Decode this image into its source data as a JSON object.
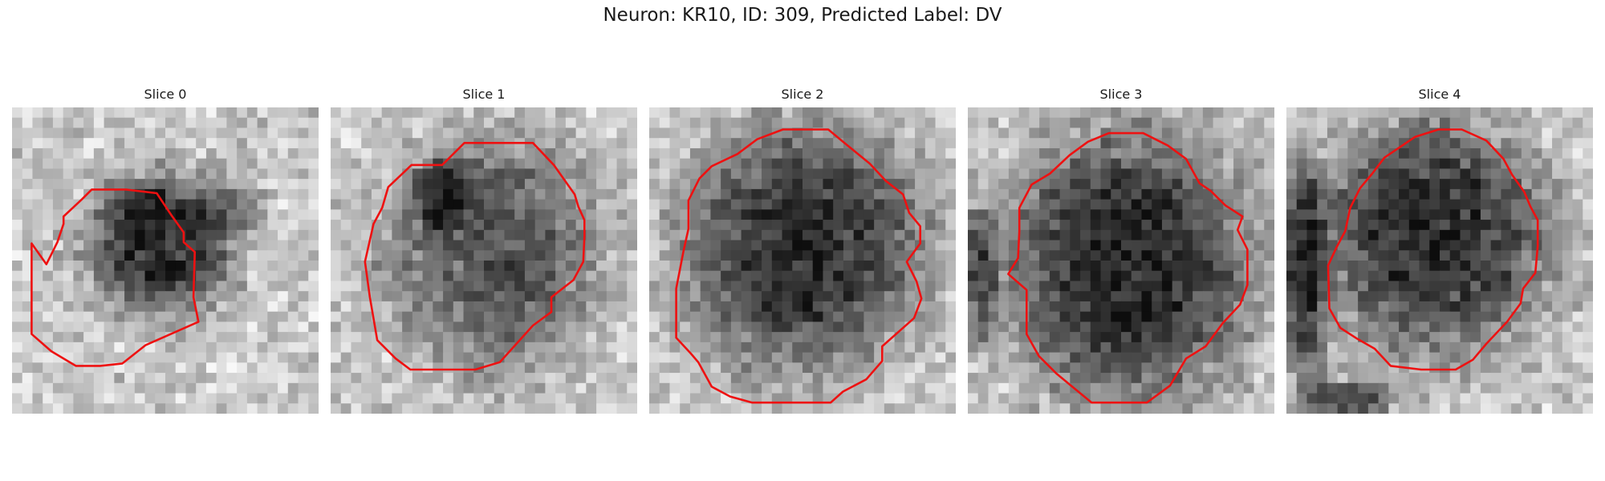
{
  "figure": {
    "title": "Neuron: KR10, ID: 309, Predicted Label: DV",
    "panels": [
      {
        "title": "Slice 0"
      },
      {
        "title": "Slice 1"
      },
      {
        "title": "Slice 2"
      },
      {
        "title": "Slice 3"
      },
      {
        "title": "Slice 4"
      }
    ]
  },
  "colors": {
    "contour": "#ee1111",
    "background": "#ffffff"
  }
}
